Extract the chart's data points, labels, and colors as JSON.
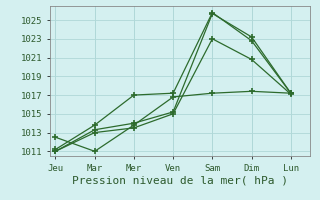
{
  "xlabel": "Pression niveau de la mer( hPa )",
  "background_color": "#d4f0f0",
  "grid_color": "#b0d8d8",
  "line_color": "#2d6b2d",
  "x_labels": [
    "Jeu",
    "Mar",
    "Mer",
    "Ven",
    "Sam",
    "Dim",
    "Lun"
  ],
  "ylim": [
    1010.5,
    1026.5
  ],
  "yticks": [
    1011,
    1013,
    1015,
    1017,
    1019,
    1021,
    1023,
    1025
  ],
  "series": [
    [
      1012.5,
      1011.0,
      1013.8,
      1016.8,
      1017.2,
      1017.4,
      1017.2
    ],
    [
      1011.2,
      1013.8,
      1017.0,
      1017.2,
      1025.8,
      1022.8,
      1017.2
    ],
    [
      1011.0,
      1013.3,
      1014.0,
      1015.2,
      1025.7,
      1023.2,
      1017.2
    ],
    [
      1011.0,
      1013.0,
      1013.5,
      1015.0,
      1023.0,
      1020.8,
      1017.1
    ]
  ],
  "x_positions": [
    0,
    1,
    2,
    3,
    4,
    5,
    6
  ],
  "xlim": [
    -0.15,
    6.5
  ]
}
